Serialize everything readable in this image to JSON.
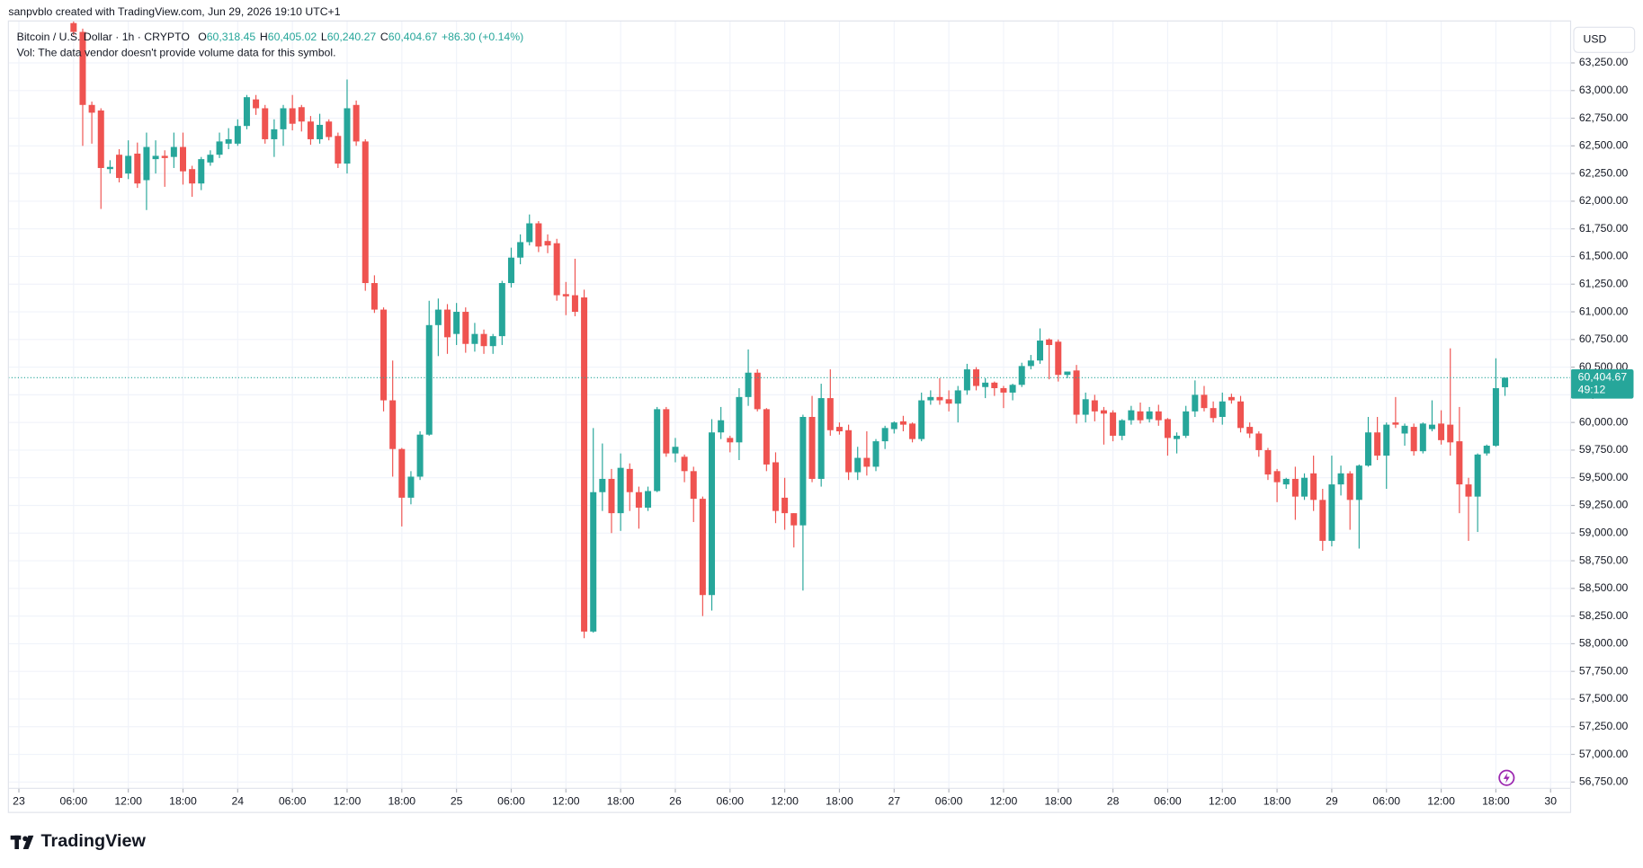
{
  "watermark": "sanpvblo created with TradingView.com, Jun 29, 2026 19:10 UTC+1",
  "brand": "TradingView",
  "chart_data": {
    "type": "candlestick",
    "title": "Bitcoin / U.S. Dollar · 1h · CRYPTO",
    "ohlc_legend": [
      {
        "label": "O",
        "value": "60,318.45"
      },
      {
        "label": "H",
        "value": "60,405.02"
      },
      {
        "label": "L",
        "value": "60,240.27"
      },
      {
        "label": "C",
        "value": "60,404.67"
      }
    ],
    "change": "+86.30 (+0.14%)",
    "volume_note": "Vol: The data vendor doesn't provide volume data for this symbol.",
    "currency": "USD",
    "last_price_label": "60,404.67",
    "countdown": "49:12",
    "up_color": "#26a69a",
    "down_color": "#ef5350",
    "grid": true,
    "x": [
      "2026-06-23 06:00",
      "2026-06-23 07:00",
      "2026-06-23 08:00",
      "2026-06-23 09:00",
      "2026-06-23 10:00",
      "2026-06-23 11:00",
      "2026-06-23 12:00",
      "2026-06-23 13:00",
      "2026-06-23 14:00",
      "2026-06-23 15:00",
      "2026-06-23 16:00",
      "2026-06-23 17:00",
      "2026-06-23 18:00",
      "2026-06-23 19:00",
      "2026-06-23 20:00",
      "2026-06-23 21:00",
      "2026-06-23 22:00",
      "2026-06-23 23:00",
      "2026-06-24 00:00",
      "2026-06-24 01:00",
      "2026-06-24 02:00",
      "2026-06-24 03:00",
      "2026-06-24 04:00",
      "2026-06-24 05:00",
      "2026-06-24 06:00",
      "2026-06-24 07:00",
      "2026-06-24 08:00",
      "2026-06-24 09:00",
      "2026-06-24 10:00",
      "2026-06-24 11:00",
      "2026-06-24 12:00",
      "2026-06-24 13:00",
      "2026-06-24 14:00",
      "2026-06-24 15:00",
      "2026-06-24 16:00",
      "2026-06-24 17:00",
      "2026-06-24 18:00",
      "2026-06-24 19:00",
      "2026-06-24 20:00",
      "2026-06-24 21:00",
      "2026-06-24 22:00",
      "2026-06-24 23:00",
      "2026-06-25 00:00",
      "2026-06-25 01:00",
      "2026-06-25 02:00",
      "2026-06-25 03:00",
      "2026-06-25 04:00",
      "2026-06-25 05:00",
      "2026-06-25 06:00",
      "2026-06-25 07:00",
      "2026-06-25 08:00",
      "2026-06-25 09:00",
      "2026-06-25 10:00",
      "2026-06-25 11:00",
      "2026-06-25 12:00",
      "2026-06-25 13:00",
      "2026-06-25 14:00",
      "2026-06-25 15:00",
      "2026-06-25 16:00",
      "2026-06-25 17:00",
      "2026-06-25 18:00",
      "2026-06-25 19:00",
      "2026-06-25 20:00",
      "2026-06-25 21:00",
      "2026-06-25 22:00",
      "2026-06-25 23:00",
      "2026-06-26 00:00",
      "2026-06-26 01:00",
      "2026-06-26 02:00",
      "2026-06-26 03:00",
      "2026-06-26 04:00",
      "2026-06-26 05:00",
      "2026-06-26 06:00",
      "2026-06-26 07:00",
      "2026-06-26 08:00",
      "2026-06-26 09:00",
      "2026-06-26 10:00",
      "2026-06-26 11:00",
      "2026-06-26 12:00",
      "2026-06-26 13:00",
      "2026-06-26 14:00",
      "2026-06-26 15:00",
      "2026-06-26 16:00",
      "2026-06-26 17:00",
      "2026-06-26 18:00",
      "2026-06-26 19:00",
      "2026-06-26 20:00",
      "2026-06-26 21:00",
      "2026-06-26 22:00",
      "2026-06-26 23:00",
      "2026-06-27 00:00",
      "2026-06-27 01:00",
      "2026-06-27 02:00",
      "2026-06-27 03:00",
      "2026-06-27 04:00",
      "2026-06-27 05:00",
      "2026-06-27 06:00",
      "2026-06-27 07:00",
      "2026-06-27 08:00",
      "2026-06-27 09:00",
      "2026-06-27 10:00",
      "2026-06-27 11:00",
      "2026-06-27 12:00",
      "2026-06-27 13:00",
      "2026-06-27 14:00",
      "2026-06-27 15:00",
      "2026-06-27 16:00",
      "2026-06-27 17:00",
      "2026-06-27 18:00",
      "2026-06-27 19:00",
      "2026-06-27 20:00",
      "2026-06-27 21:00",
      "2026-06-27 22:00",
      "2026-06-27 23:00",
      "2026-06-28 00:00",
      "2026-06-28 01:00",
      "2026-06-28 02:00",
      "2026-06-28 03:00",
      "2026-06-28 04:00",
      "2026-06-28 05:00",
      "2026-06-28 06:00",
      "2026-06-28 07:00",
      "2026-06-28 08:00",
      "2026-06-28 09:00",
      "2026-06-28 10:00",
      "2026-06-28 11:00",
      "2026-06-28 12:00",
      "2026-06-28 13:00",
      "2026-06-28 14:00",
      "2026-06-28 15:00",
      "2026-06-28 16:00",
      "2026-06-28 17:00",
      "2026-06-28 18:00",
      "2026-06-28 19:00",
      "2026-06-28 20:00",
      "2026-06-28 21:00",
      "2026-06-28 22:00",
      "2026-06-28 23:00",
      "2026-06-29 00:00",
      "2026-06-29 01:00",
      "2026-06-29 02:00",
      "2026-06-29 03:00",
      "2026-06-29 04:00",
      "2026-06-29 05:00",
      "2026-06-29 06:00",
      "2026-06-29 07:00",
      "2026-06-29 08:00",
      "2026-06-29 09:00",
      "2026-06-29 10:00",
      "2026-06-29 11:00",
      "2026-06-29 12:00",
      "2026-06-29 13:00",
      "2026-06-29 14:00",
      "2026-06-29 15:00",
      "2026-06-29 16:00",
      "2026-06-29 17:00",
      "2026-06-29 18:00",
      "2026-06-29 19:00"
    ],
    "open": [
      63610,
      63530,
      62870,
      62820,
      62290,
      62420,
      62250,
      62430,
      62190,
      62380,
      62410,
      62400,
      62490,
      62290,
      62160,
      62350,
      62420,
      62520,
      62520,
      62680,
      62920,
      62840,
      62560,
      62650,
      62840,
      62850,
      62720,
      62560,
      62720,
      62590,
      62340,
      62870,
      62540,
      61260,
      61020,
      60200,
      59760,
      59320,
      59510,
      59890,
      60880,
      61020,
      60800,
      61000,
      60710,
      60800,
      60690,
      60780,
      61260,
      61490,
      61630,
      61800,
      61640,
      61620,
      61160,
      61150,
      61130,
      58110,
      59370,
      59490,
      59180,
      59580,
      59370,
      59230,
      59380,
      60120,
      59720,
      59690,
      59560,
      59310,
      58440,
      59910,
      59860,
      59820,
      60230,
      60450,
      60120,
      59640,
      59320,
      59180,
      59070,
      60050,
      59490,
      60220,
      59960,
      59930,
      59550,
      59680,
      59600,
      59830,
      59940,
      60010,
      59990,
      59850,
      60200,
      60230,
      60210,
      60170,
      60290,
      60480,
      60320,
      60360,
      60310,
      60270,
      60340,
      60510,
      60560,
      60750,
      60730,
      60430,
      60470,
      60070,
      60200,
      60110,
      60090,
      59880,
      60020,
      60100,
      60030,
      60100,
      60030,
      59850,
      59880,
      60100,
      60250,
      60130,
      60050,
      60230,
      60190,
      59960,
      59900,
      59750,
      59560,
      59440,
      59490,
      59330,
      59540,
      59300,
      58930,
      59440,
      59540,
      59300,
      59610,
      59910,
      59700,
      60000,
      59900,
      59960,
      59740,
      59940,
      59990,
      59980,
      59830,
      59440,
      59330,
      59720,
      59790,
      60318.45
    ],
    "high": [
      63630,
      63560,
      62900,
      62840,
      62370,
      62470,
      62550,
      62530,
      62620,
      62550,
      62460,
      62620,
      62620,
      62320,
      62400,
      62460,
      62620,
      62660,
      62740,
      62960,
      62960,
      62870,
      62740,
      62870,
      62960,
      62870,
      62770,
      62790,
      62740,
      62620,
      63100,
      62910,
      62560,
      61330,
      61040,
      60560,
      59770,
      59560,
      59920,
      61100,
      61120,
      61070,
      61080,
      61040,
      60900,
      60840,
      60800,
      61280,
      61580,
      61700,
      61880,
      61820,
      61700,
      61660,
      61270,
      61480,
      61200,
      59950,
      59810,
      59580,
      59720,
      59630,
      59420,
      59420,
      60140,
      60140,
      59860,
      59710,
      59600,
      59330,
      60030,
      60140,
      59880,
      60310,
      60660,
      60480,
      60130,
      59730,
      59500,
      59180,
      60070,
      60240,
      60350,
      60480,
      60000,
      59980,
      59780,
      59920,
      59850,
      59970,
      60010,
      60060,
      60000,
      60270,
      60290,
      60400,
      60290,
      60330,
      60530,
      60500,
      60400,
      60370,
      60330,
      60350,
      60540,
      60610,
      60850,
      60760,
      60750,
      60460,
      60520,
      60270,
      60250,
      60140,
      60110,
      60030,
      60150,
      60180,
      60140,
      60160,
      60040,
      59910,
      60150,
      60380,
      60330,
      60190,
      60270,
      60260,
      60240,
      60000,
      59920,
      59770,
      59580,
      59500,
      59600,
      59540,
      59700,
      59400,
      59700,
      59610,
      59560,
      59620,
      60050,
      60050,
      60000,
      60230,
      59990,
      59990,
      60000,
      60200,
      60110,
      60670,
      60140,
      59500,
      59720,
      59800,
      60580,
      60405.02
    ],
    "low": [
      63500,
      62500,
      62520,
      61930,
      62250,
      62170,
      62200,
      62120,
      61920,
      62250,
      62130,
      62300,
      62150,
      62040,
      62100,
      62320,
      62390,
      62470,
      62500,
      62650,
      62780,
      62520,
      62400,
      62500,
      62640,
      62630,
      62510,
      62520,
      62550,
      62300,
      62250,
      62500,
      61190,
      60990,
      60100,
      59510,
      59060,
      59260,
      59480,
      59880,
      60600,
      60620,
      60700,
      60630,
      60640,
      60620,
      60620,
      60700,
      61220,
      61430,
      61600,
      61540,
      61530,
      61100,
      60970,
      60960,
      58050,
      58100,
      59200,
      59000,
      59020,
      59200,
      59040,
      59200,
      59370,
      59690,
      59640,
      59460,
      59100,
      58250,
      58300,
      59850,
      59730,
      59660,
      60150,
      60100,
      59560,
      59090,
      59030,
      58870,
      58480,
      59460,
      59420,
      59880,
      59890,
      59480,
      59480,
      59520,
      59560,
      59760,
      59900,
      59920,
      59820,
      59830,
      60160,
      60160,
      60100,
      60000,
      60250,
      60290,
      60220,
      60240,
      60130,
      60200,
      60320,
      60480,
      60530,
      60390,
      60370,
      60400,
      59990,
      60000,
      60010,
      59800,
      59830,
      59840,
      59980,
      59990,
      60000,
      59970,
      59700,
      59720,
      59860,
      60050,
      60100,
      60000,
      59980,
      60170,
      59910,
      59860,
      59690,
      59480,
      59280,
      59400,
      59120,
      59300,
      59200,
      58840,
      58880,
      59340,
      59030,
      58860,
      59600,
      59660,
      59400,
      59950,
      59790,
      59700,
      59720,
      59920,
      59800,
      59700,
      59180,
      58930,
      59010,
      59700,
      59780,
      60240.27
    ],
    "close": [
      63530,
      62870,
      62800,
      62300,
      62310,
      62210,
      62410,
      62160,
      62490,
      62410,
      62390,
      62490,
      62270,
      62160,
      62380,
      62420,
      62540,
      62560,
      62680,
      62940,
      62840,
      62560,
      62650,
      62840,
      62700,
      62720,
      62560,
      62690,
      62580,
      62340,
      62840,
      62540,
      61260,
      61020,
      60200,
      59760,
      59320,
      59510,
      59890,
      60880,
      61020,
      60770,
      61000,
      60710,
      60800,
      60690,
      60780,
      61260,
      61490,
      61630,
      61800,
      61590,
      61600,
      61150,
      61140,
      61000,
      58110,
      59370,
      59490,
      59180,
      59590,
      59370,
      59230,
      59380,
      60120,
      59720,
      59780,
      59560,
      59310,
      58440,
      59910,
      60020,
      59820,
      60230,
      60450,
      60120,
      59620,
      59200,
      59180,
      59070,
      60050,
      59490,
      60220,
      59930,
      59920,
      59550,
      59680,
      59600,
      59830,
      59950,
      60000,
      59980,
      59850,
      60200,
      60230,
      60200,
      60170,
      60290,
      60480,
      60330,
      60360,
      60310,
      60270,
      60340,
      60510,
      60560,
      60740,
      60700,
      60430,
      60460,
      60070,
      60210,
      60100,
      60080,
      59880,
      60020,
      60110,
      60020,
      60100,
      60020,
      59860,
      59880,
      60100,
      60250,
      60130,
      60040,
      60190,
      60200,
      59950,
      59900,
      59750,
      59530,
      59460,
      59490,
      59330,
      59500,
      59300,
      58930,
      59440,
      59540,
      59300,
      59610,
      59910,
      59700,
      59980,
      59980,
      59970,
      59740,
      59990,
      59980,
      59840,
      59820,
      59440,
      59330,
      59710,
      59790,
      60310,
      60404.67
    ],
    "ylim": [
      56693,
      63629
    ],
    "yticks": [
      {
        "value": 56750,
        "label": "56,750.00"
      },
      {
        "value": 57000,
        "label": "57,000.00"
      },
      {
        "value": 57250,
        "label": "57,250.00"
      },
      {
        "value": 57500,
        "label": "57,500.00"
      },
      {
        "value": 57750,
        "label": "57,750.00"
      },
      {
        "value": 58000,
        "label": "58,000.00"
      },
      {
        "value": 58250,
        "label": "58,250.00"
      },
      {
        "value": 58500,
        "label": "58,500.00"
      },
      {
        "value": 58750,
        "label": "58,750.00"
      },
      {
        "value": 59000,
        "label": "59,000.00"
      },
      {
        "value": 59250,
        "label": "59,250.00"
      },
      {
        "value": 59500,
        "label": "59,500.00"
      },
      {
        "value": 59750,
        "label": "59,750.00"
      },
      {
        "value": 60000,
        "label": "60,000.00"
      },
      {
        "value": 60250,
        "label": "60,250.00"
      },
      {
        "value": 60500,
        "label": "60,500.00"
      },
      {
        "value": 60750,
        "label": "60,750.00"
      },
      {
        "value": 61000,
        "label": "61,000.00"
      },
      {
        "value": 61250,
        "label": "61,250.00"
      },
      {
        "value": 61500,
        "label": "61,500.00"
      },
      {
        "value": 61750,
        "label": "61,750.00"
      },
      {
        "value": 62000,
        "label": "62,000.00"
      },
      {
        "value": 62250,
        "label": "62,250.00"
      },
      {
        "value": 62500,
        "label": "62,500.00"
      },
      {
        "value": 62750,
        "label": "62,750.00"
      },
      {
        "value": 63000,
        "label": "63,000.00"
      },
      {
        "value": 63250,
        "label": "63,250.00"
      }
    ],
    "xticks": [
      {
        "value": "2026-06-23 00:00",
        "label": "23"
      },
      {
        "value": "2026-06-23 06:00",
        "label": "06:00"
      },
      {
        "value": "2026-06-23 12:00",
        "label": "12:00"
      },
      {
        "value": "2026-06-23 18:00",
        "label": "18:00"
      },
      {
        "value": "2026-06-24 00:00",
        "label": "24"
      },
      {
        "value": "2026-06-24 06:00",
        "label": "06:00"
      },
      {
        "value": "2026-06-24 12:00",
        "label": "12:00"
      },
      {
        "value": "2026-06-24 18:00",
        "label": "18:00"
      },
      {
        "value": "2026-06-25 00:00",
        "label": "25"
      },
      {
        "value": "2026-06-25 06:00",
        "label": "06:00"
      },
      {
        "value": "2026-06-25 12:00",
        "label": "12:00"
      },
      {
        "value": "2026-06-25 18:00",
        "label": "18:00"
      },
      {
        "value": "2026-06-26 00:00",
        "label": "26"
      },
      {
        "value": "2026-06-26 06:00",
        "label": "06:00"
      },
      {
        "value": "2026-06-26 12:00",
        "label": "12:00"
      },
      {
        "value": "2026-06-26 18:00",
        "label": "18:00"
      },
      {
        "value": "2026-06-27 00:00",
        "label": "27"
      },
      {
        "value": "2026-06-27 06:00",
        "label": "06:00"
      },
      {
        "value": "2026-06-27 12:00",
        "label": "12:00"
      },
      {
        "value": "2026-06-27 18:00",
        "label": "18:00"
      },
      {
        "value": "2026-06-28 00:00",
        "label": "28"
      },
      {
        "value": "2026-06-28 06:00",
        "label": "06:00"
      },
      {
        "value": "2026-06-28 12:00",
        "label": "12:00"
      },
      {
        "value": "2026-06-28 18:00",
        "label": "18:00"
      },
      {
        "value": "2026-06-29 00:00",
        "label": "29"
      },
      {
        "value": "2026-06-29 06:00",
        "label": "06:00"
      },
      {
        "value": "2026-06-29 12:00",
        "label": "12:00"
      },
      {
        "value": "2026-06-29 18:00",
        "label": "18:00"
      },
      {
        "value": "2026-06-30 00:00",
        "label": "30"
      }
    ]
  }
}
